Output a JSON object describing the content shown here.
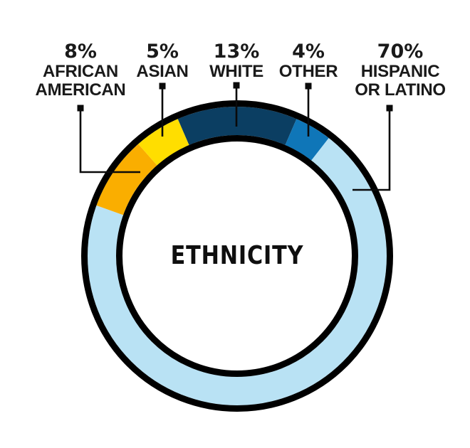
{
  "chart_data": {
    "type": "pie",
    "variant": "donut",
    "title": "ETHNICITY",
    "center_label": "ETHNICITY",
    "unit": "%",
    "segments": [
      {
        "label": "AFRICAN AMERICAN",
        "label_lines": [
          "AFRICAN",
          "AMERICAN"
        ],
        "pct_label": "8%",
        "value": 8,
        "color": "#FAAE00"
      },
      {
        "label": "ASIAN",
        "label_lines": [
          "ASIAN"
        ],
        "pct_label": "5%",
        "value": 5,
        "color": "#FFDE00"
      },
      {
        "label": "WHITE",
        "label_lines": [
          "WHITE"
        ],
        "pct_label": "13%",
        "value": 13,
        "color": "#0B3E62"
      },
      {
        "label": "OTHER",
        "label_lines": [
          "OTHER"
        ],
        "pct_label": "4%",
        "value": 4,
        "color": "#0F76B8"
      },
      {
        "label": "HISPANIC OR LATINO",
        "label_lines": [
          "HISPANIC",
          "OR LATINO"
        ],
        "pct_label": "70%",
        "value": 70,
        "color": "#B9E2F4"
      }
    ],
    "arc_order": [
      "WHITE",
      "OTHER",
      "HISPANIC OR LATINO",
      "AFRICAN AMERICAN",
      "ASIAN"
    ],
    "layout_hints": {
      "start": "WHITE segment centered at 12 o'clock, arcs run clockwise",
      "legend_position": "top row of callout labels with leader lines and square markers",
      "outline_color": "#000000",
      "background": "#ffffff",
      "text_color": "#1a1a1a",
      "grid": "off"
    }
  }
}
